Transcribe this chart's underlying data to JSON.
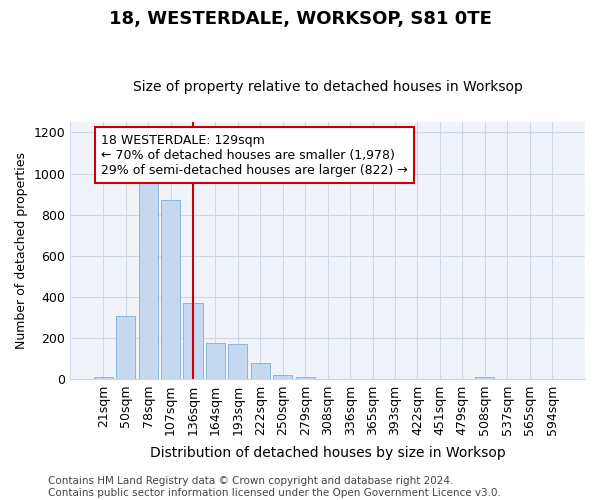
{
  "title": "18, WESTERDALE, WORKSOP, S81 0TE",
  "subtitle": "Size of property relative to detached houses in Worksop",
  "xlabel": "Distribution of detached houses by size in Worksop",
  "ylabel": "Number of detached properties",
  "footer": "Contains HM Land Registry data © Crown copyright and database right 2024.\nContains public sector information licensed under the Open Government Licence v3.0.",
  "categories": [
    "21sqm",
    "50sqm",
    "78sqm",
    "107sqm",
    "136sqm",
    "164sqm",
    "193sqm",
    "222sqm",
    "250sqm",
    "279sqm",
    "308sqm",
    "336sqm",
    "365sqm",
    "393sqm",
    "422sqm",
    "451sqm",
    "479sqm",
    "508sqm",
    "537sqm",
    "565sqm",
    "594sqm"
  ],
  "values": [
    10,
    310,
    975,
    870,
    370,
    175,
    172,
    82,
    20,
    14,
    4,
    2,
    1,
    1,
    0,
    0,
    0,
    10,
    0,
    0,
    0
  ],
  "bar_color": "#c5d8f0",
  "bar_edge_color": "#7ab0d8",
  "grid_color": "#ccd8e8",
  "background_color": "#ffffff",
  "plot_bg_color": "#f0f4fa",
  "red_line_index": 4,
  "red_line_color": "#cc0000",
  "annotation_text": "18 WESTERDALE: 129sqm\n← 70% of detached houses are smaller (1,978)\n29% of semi-detached houses are larger (822) →",
  "annotation_box_color": "#cc0000",
  "annotation_bg_color": "#ffffff",
  "ylim": [
    0,
    1250
  ],
  "yticks": [
    0,
    200,
    400,
    600,
    800,
    1000,
    1200
  ],
  "title_fontsize": 13,
  "subtitle_fontsize": 10,
  "xlabel_fontsize": 10,
  "ylabel_fontsize": 9,
  "tick_fontsize": 9,
  "annotation_fontsize": 9,
  "footer_fontsize": 7.5
}
